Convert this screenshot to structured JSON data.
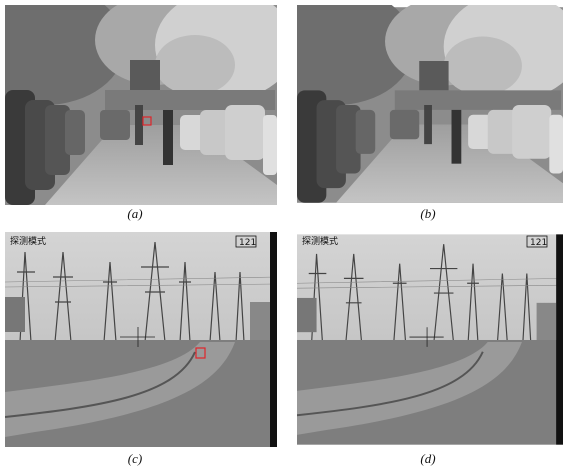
{
  "panels": [
    {
      "caption": "(a)"
    },
    {
      "caption": "(b)"
    },
    {
      "caption": "(c)",
      "overlay_left": "探测模式",
      "overlay_right": "121"
    },
    {
      "caption": "(d)",
      "overlay_left": "探测模式",
      "overlay_right": "121"
    }
  ]
}
